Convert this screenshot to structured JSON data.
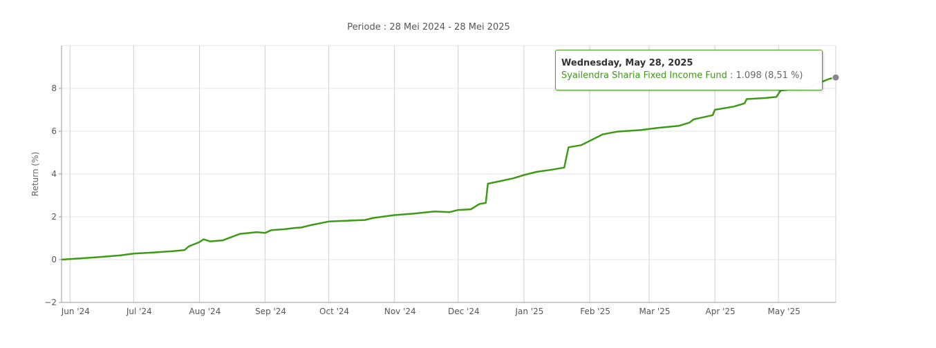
{
  "chart_data": {
    "type": "line",
    "title": "Periode : 28 Mei 2024 - 28 Mei 2025",
    "ylabel": "Return (%)",
    "xlabel": "",
    "ylim": [
      -2,
      10
    ],
    "yticks": [
      -2,
      0,
      2,
      4,
      6,
      8
    ],
    "xlim": [
      "2024-05-28",
      "2025-05-28"
    ],
    "x_ticks": [
      {
        "date": "2024-06-01",
        "label": "Jun '24"
      },
      {
        "date": "2024-07-01",
        "label": "Jul '24"
      },
      {
        "date": "2024-08-01",
        "label": "Aug '24"
      },
      {
        "date": "2024-09-01",
        "label": "Sep '24"
      },
      {
        "date": "2024-10-01",
        "label": "Oct '24"
      },
      {
        "date": "2024-11-01",
        "label": "Nov '24"
      },
      {
        "date": "2024-12-01",
        "label": "Dec '24"
      },
      {
        "date": "2025-01-01",
        "label": "Jan '25"
      },
      {
        "date": "2025-02-01",
        "label": "Feb '25"
      },
      {
        "date": "2025-03-01",
        "label": "Mar '25"
      },
      {
        "date": "2025-04-01",
        "label": "Apr '25"
      },
      {
        "date": "2025-05-01",
        "label": "May '25"
      }
    ],
    "grid": true,
    "series": [
      {
        "name": "Syailendra Sharia Fixed Income Fund",
        "color": "#3d9a14",
        "points": [
          [
            "2024-05-28",
            0.0
          ],
          [
            "2024-06-05",
            0.05
          ],
          [
            "2024-06-15",
            0.12
          ],
          [
            "2024-06-25",
            0.2
          ],
          [
            "2024-07-01",
            0.28
          ],
          [
            "2024-07-10",
            0.33
          ],
          [
            "2024-07-20",
            0.4
          ],
          [
            "2024-07-25",
            0.45
          ],
          [
            "2024-07-27",
            0.62
          ],
          [
            "2024-08-01",
            0.82
          ],
          [
            "2024-08-03",
            0.95
          ],
          [
            "2024-08-06",
            0.85
          ],
          [
            "2024-08-12",
            0.9
          ],
          [
            "2024-08-16",
            1.05
          ],
          [
            "2024-08-20",
            1.2
          ],
          [
            "2024-08-28",
            1.28
          ],
          [
            "2024-09-01",
            1.25
          ],
          [
            "2024-09-04",
            1.38
          ],
          [
            "2024-09-10",
            1.42
          ],
          [
            "2024-09-15",
            1.48
          ],
          [
            "2024-09-18",
            1.5
          ],
          [
            "2024-09-22",
            1.6
          ],
          [
            "2024-09-28",
            1.72
          ],
          [
            "2024-10-01",
            1.78
          ],
          [
            "2024-10-10",
            1.82
          ],
          [
            "2024-10-18",
            1.85
          ],
          [
            "2024-10-22",
            1.95
          ],
          [
            "2024-11-01",
            2.08
          ],
          [
            "2024-11-10",
            2.15
          ],
          [
            "2024-11-15",
            2.2
          ],
          [
            "2024-11-20",
            2.25
          ],
          [
            "2024-11-27",
            2.22
          ],
          [
            "2024-12-01",
            2.32
          ],
          [
            "2024-12-07",
            2.35
          ],
          [
            "2024-12-11",
            2.6
          ],
          [
            "2024-12-14",
            2.65
          ],
          [
            "2024-12-15",
            3.55
          ],
          [
            "2024-12-20",
            3.65
          ],
          [
            "2024-12-27",
            3.8
          ],
          [
            "2025-01-01",
            3.95
          ],
          [
            "2025-01-07",
            4.1
          ],
          [
            "2025-01-14",
            4.2
          ],
          [
            "2025-01-20",
            4.3
          ],
          [
            "2025-01-22",
            5.25
          ],
          [
            "2025-01-28",
            5.35
          ],
          [
            "2025-02-01",
            5.55
          ],
          [
            "2025-02-07",
            5.85
          ],
          [
            "2025-02-14",
            5.98
          ],
          [
            "2025-02-25",
            6.05
          ],
          [
            "2025-03-05",
            6.15
          ],
          [
            "2025-03-15",
            6.25
          ],
          [
            "2025-03-20",
            6.4
          ],
          [
            "2025-03-22",
            6.55
          ],
          [
            "2025-03-31",
            6.75
          ],
          [
            "2025-04-01",
            7.0
          ],
          [
            "2025-04-10",
            7.15
          ],
          [
            "2025-04-15",
            7.3
          ],
          [
            "2025-04-16",
            7.5
          ],
          [
            "2025-04-25",
            7.55
          ],
          [
            "2025-04-30",
            7.6
          ],
          [
            "2025-05-02",
            7.9
          ],
          [
            "2025-05-10",
            8.0
          ],
          [
            "2025-05-15",
            8.05
          ],
          [
            "2025-05-20",
            8.25
          ],
          [
            "2025-05-25",
            8.45
          ],
          [
            "2025-05-28",
            8.51
          ]
        ]
      }
    ],
    "tooltip": {
      "date": "Wednesday, May 28, 2025",
      "series": "Syailendra Sharia Fixed Income Fund",
      "value": ": 1.098 (8,51 %)"
    },
    "marker": {
      "date": "2025-05-28",
      "value": 8.51
    }
  }
}
